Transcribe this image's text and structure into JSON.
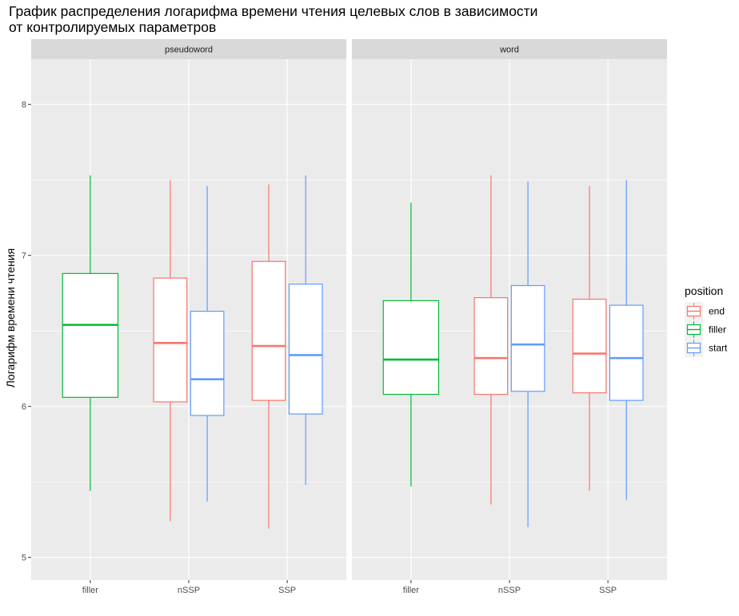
{
  "chart_data": {
    "type": "boxplot",
    "title_lines": [
      "График распределения логарифма времени чтения целевых слов в зависимости",
      "от контролируемых параметров"
    ],
    "xlabel": "",
    "ylabel": "Логарифм времени чтения",
    "ylim": [
      4.85,
      8.3
    ],
    "y_ticks": [
      5,
      6,
      7,
      8
    ],
    "categories": [
      "filler",
      "nSSP",
      "SSP"
    ],
    "grid": true,
    "legend": {
      "title": "position",
      "placement": "right",
      "entries": [
        {
          "name": "end",
          "color": "#F8766D"
        },
        {
          "name": "filler",
          "color": "#00BA38"
        },
        {
          "name": "start",
          "color": "#619CFF"
        }
      ]
    },
    "facets": [
      {
        "label": "pseudoword",
        "boxes": [
          {
            "category": "filler",
            "position": "filler",
            "min": 5.44,
            "q1": 6.06,
            "median": 6.54,
            "q3": 6.88,
            "max": 7.53
          },
          {
            "category": "nSSP",
            "position": "end",
            "min": 5.24,
            "q1": 6.03,
            "median": 6.42,
            "q3": 6.85,
            "max": 7.5
          },
          {
            "category": "nSSP",
            "position": "start",
            "min": 5.37,
            "q1": 5.94,
            "median": 6.18,
            "q3": 6.63,
            "max": 7.46
          },
          {
            "category": "SSP",
            "position": "end",
            "min": 5.19,
            "q1": 6.04,
            "median": 6.4,
            "q3": 6.96,
            "max": 7.47
          },
          {
            "category": "SSP",
            "position": "start",
            "min": 5.48,
            "q1": 5.95,
            "median": 6.34,
            "q3": 6.81,
            "max": 7.53
          }
        ]
      },
      {
        "label": "word",
        "boxes": [
          {
            "category": "filler",
            "position": "filler",
            "min": 5.47,
            "q1": 6.08,
            "median": 6.31,
            "q3": 6.7,
            "max": 7.35
          },
          {
            "category": "nSSP",
            "position": "end",
            "min": 5.35,
            "q1": 6.08,
            "median": 6.32,
            "q3": 6.72,
            "max": 7.53
          },
          {
            "category": "nSSP",
            "position": "start",
            "min": 5.2,
            "q1": 6.1,
            "median": 6.41,
            "q3": 6.8,
            "max": 7.49
          },
          {
            "category": "SSP",
            "position": "end",
            "min": 5.44,
            "q1": 6.09,
            "median": 6.35,
            "q3": 6.71,
            "max": 7.46
          },
          {
            "category": "SSP",
            "position": "start",
            "min": 5.38,
            "q1": 6.04,
            "median": 6.32,
            "q3": 6.67,
            "max": 7.5
          }
        ]
      }
    ]
  }
}
